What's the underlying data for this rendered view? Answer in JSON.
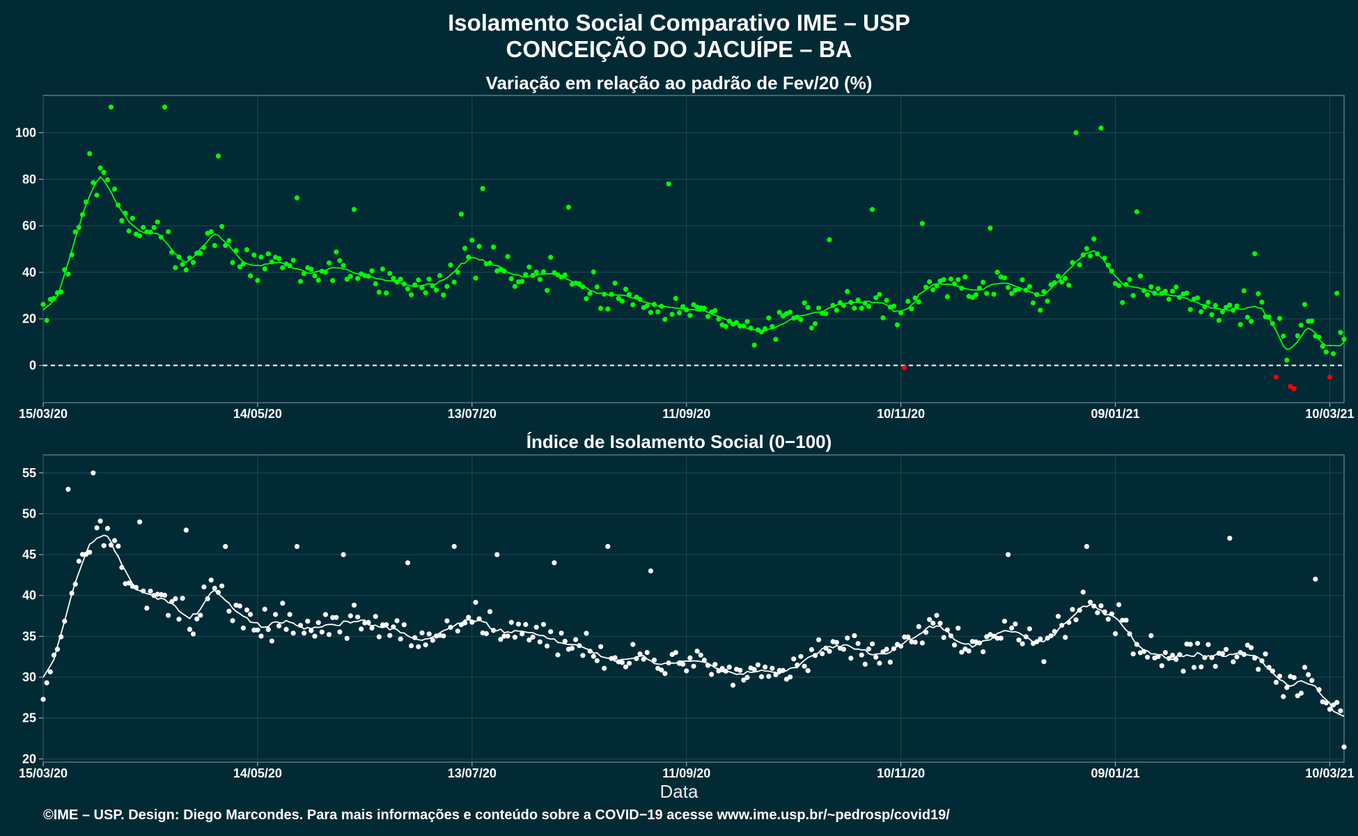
{
  "title_line1": "Isolamento Social Comparativo IME – USP",
  "title_line2": "CONCEIÇÃO DO JACUÍPE – BA",
  "footer": "©IME – USP. Design: Diego Marcondes. Para mais informações e conteúdo sobre a COVID−19 acesse www.ime.usp.br/~pedrosp/covid19/",
  "xaxis_label": "Data",
  "colors": {
    "background": "#022a35",
    "green": "#00ff00",
    "red": "#ff0000",
    "white": "#ffffff",
    "grid": "#1d4a55"
  },
  "chart_data": [
    {
      "type": "scatter",
      "title": "Variação em relação ao padrão de Fev/20 (%)",
      "xlabel": "",
      "ylabel": "",
      "x_range": [
        "2020-03-15",
        "2021-03-14"
      ],
      "ylim": [
        -16,
        116
      ],
      "y_ticks": [
        0,
        20,
        40,
        60,
        80,
        100
      ],
      "x_ticks": [
        "15/03/20",
        "14/05/20",
        "13/07/20",
        "11/09/20",
        "10/11/20",
        "09/01/21",
        "10/03/21"
      ],
      "reference_line": 0,
      "grid": true,
      "anchors": [
        [
          "2020-03-15",
          22
        ],
        [
          "2020-03-19",
          28
        ],
        [
          "2020-03-23",
          50
        ],
        [
          "2020-03-27",
          70
        ],
        [
          "2020-03-31",
          84
        ],
        [
          "2020-04-04",
          70
        ],
        [
          "2020-04-08",
          62
        ],
        [
          "2020-04-12",
          56
        ],
        [
          "2020-04-16",
          56
        ],
        [
          "2020-04-20",
          50
        ],
        [
          "2020-04-24",
          44
        ],
        [
          "2020-04-28",
          50
        ],
        [
          "2020-05-02",
          58
        ],
        [
          "2020-05-06",
          52
        ],
        [
          "2020-05-10",
          44
        ],
        [
          "2020-05-14",
          42
        ],
        [
          "2020-05-20",
          44
        ],
        [
          "2020-05-28",
          40
        ],
        [
          "2020-06-06",
          42
        ],
        [
          "2020-06-16",
          38
        ],
        [
          "2020-06-26",
          34
        ],
        [
          "2020-07-03",
          36
        ],
        [
          "2020-07-13",
          46
        ],
        [
          "2020-07-20",
          42
        ],
        [
          "2020-07-28",
          38
        ],
        [
          "2020-08-05",
          40
        ],
        [
          "2020-08-15",
          32
        ],
        [
          "2020-08-25",
          30
        ],
        [
          "2020-09-01",
          28
        ],
        [
          "2020-09-11",
          24
        ],
        [
          "2020-09-20",
          22
        ],
        [
          "2020-09-28",
          16
        ],
        [
          "2020-10-06",
          14
        ],
        [
          "2020-10-14",
          22
        ],
        [
          "2020-10-23",
          26
        ],
        [
          "2020-10-31",
          28
        ],
        [
          "2020-11-10",
          26
        ],
        [
          "2020-11-20",
          36
        ],
        [
          "2020-11-30",
          32
        ],
        [
          "2020-12-09",
          36
        ],
        [
          "2020-12-20",
          30
        ],
        [
          "2020-12-29",
          46
        ],
        [
          "2021-01-03",
          50
        ],
        [
          "2021-01-11",
          36
        ],
        [
          "2021-01-20",
          30
        ],
        [
          "2021-01-30",
          28
        ],
        [
          "2021-02-09",
          24
        ],
        [
          "2021-02-19",
          26
        ],
        [
          "2021-02-27",
          8
        ],
        [
          "2021-03-03",
          16
        ],
        [
          "2021-03-09",
          10
        ],
        [
          "2021-03-14",
          10
        ]
      ],
      "outliers": [
        [
          "2020-03-28",
          91
        ],
        [
          "2020-04-03",
          111
        ],
        [
          "2020-04-18",
          111
        ],
        [
          "2020-05-03",
          90
        ],
        [
          "2020-05-25",
          72
        ],
        [
          "2020-06-10",
          67
        ],
        [
          "2020-07-10",
          65
        ],
        [
          "2020-07-16",
          76
        ],
        [
          "2020-08-09",
          68
        ],
        [
          "2020-09-06",
          78
        ],
        [
          "2020-10-21",
          54
        ],
        [
          "2020-11-02",
          67
        ],
        [
          "2020-11-16",
          61
        ],
        [
          "2020-12-05",
          59
        ],
        [
          "2020-12-29",
          100
        ],
        [
          "2021-01-05",
          102
        ],
        [
          "2021-01-15",
          66
        ],
        [
          "2021-02-17",
          48
        ],
        [
          "2021-03-12",
          31
        ]
      ],
      "negative_points": [
        [
          "2020-11-11",
          -1
        ],
        [
          "2021-02-23",
          -5
        ],
        [
          "2021-02-27",
          -9
        ],
        [
          "2021-02-28",
          -10
        ],
        [
          "2021-03-10",
          -5
        ]
      ],
      "series": [
        {
          "color": "#00ff00",
          "kind": "daily points + 7-day moving average"
        }
      ]
    },
    {
      "type": "scatter",
      "title": "Índice de Isolamento Social (0−100)",
      "xlabel": "Data",
      "ylabel": "",
      "x_range": [
        "2020-03-15",
        "2021-03-14"
      ],
      "ylim": [
        19.6,
        57.2
      ],
      "y_ticks": [
        20,
        25,
        30,
        35,
        40,
        45,
        50,
        55
      ],
      "x_ticks": [
        "15/03/20",
        "14/05/20",
        "13/07/20",
        "11/09/20",
        "10/11/20",
        "09/01/21",
        "10/03/21"
      ],
      "grid": true,
      "anchors": [
        [
          "2020-03-15",
          28
        ],
        [
          "2020-03-19",
          34
        ],
        [
          "2020-03-23",
          40
        ],
        [
          "2020-03-27",
          46
        ],
        [
          "2020-03-31",
          48
        ],
        [
          "2020-04-04",
          45
        ],
        [
          "2020-04-08",
          42
        ],
        [
          "2020-04-14",
          40
        ],
        [
          "2020-04-20",
          39
        ],
        [
          "2020-04-26",
          37
        ],
        [
          "2020-05-02",
          41
        ],
        [
          "2020-05-06",
          39
        ],
        [
          "2020-05-12",
          36
        ],
        [
          "2020-05-20",
          37
        ],
        [
          "2020-06-01",
          36
        ],
        [
          "2020-06-10",
          37
        ],
        [
          "2020-06-20",
          36
        ],
        [
          "2020-06-30",
          34
        ],
        [
          "2020-07-10",
          38
        ],
        [
          "2020-07-20",
          36
        ],
        [
          "2020-07-30",
          35
        ],
        [
          "2020-08-09",
          34
        ],
        [
          "2020-08-19",
          33
        ],
        [
          "2020-08-31",
          32
        ],
        [
          "2020-09-11",
          32
        ],
        [
          "2020-09-21",
          30
        ],
        [
          "2020-10-01",
          30
        ],
        [
          "2020-10-10",
          31
        ],
        [
          "2020-10-20",
          34
        ],
        [
          "2020-10-30",
          33
        ],
        [
          "2020-11-10",
          33
        ],
        [
          "2020-11-20",
          36
        ],
        [
          "2020-11-30",
          34
        ],
        [
          "2020-12-10",
          36
        ],
        [
          "2020-12-20",
          34
        ],
        [
          "2021-01-01",
          39
        ],
        [
          "2021-01-06",
          38
        ],
        [
          "2021-01-16",
          34
        ],
        [
          "2021-01-26",
          33
        ],
        [
          "2021-02-06",
          33
        ],
        [
          "2021-02-16",
          33
        ],
        [
          "2021-02-22",
          31
        ],
        [
          "2021-02-26",
          28
        ],
        [
          "2021-03-03",
          30
        ],
        [
          "2021-03-08",
          28
        ],
        [
          "2021-03-13",
          26
        ],
        [
          "2021-03-14",
          21
        ]
      ],
      "outliers": [
        [
          "2020-03-22",
          53
        ],
        [
          "2020-03-29",
          55
        ],
        [
          "2020-04-11",
          49
        ],
        [
          "2020-04-24",
          48
        ],
        [
          "2020-05-05",
          46
        ],
        [
          "2020-05-25",
          46
        ],
        [
          "2020-06-07",
          45
        ],
        [
          "2020-06-25",
          44
        ],
        [
          "2020-07-08",
          46
        ],
        [
          "2020-07-20",
          45
        ],
        [
          "2020-08-05",
          44
        ],
        [
          "2020-08-20",
          46
        ],
        [
          "2020-09-01",
          43
        ],
        [
          "2020-12-10",
          45
        ],
        [
          "2021-01-01",
          46
        ],
        [
          "2021-02-10",
          47
        ],
        [
          "2021-03-06",
          42
        ]
      ],
      "series": [
        {
          "color": "#ffffff",
          "kind": "daily points + 7-day moving average"
        }
      ]
    }
  ]
}
